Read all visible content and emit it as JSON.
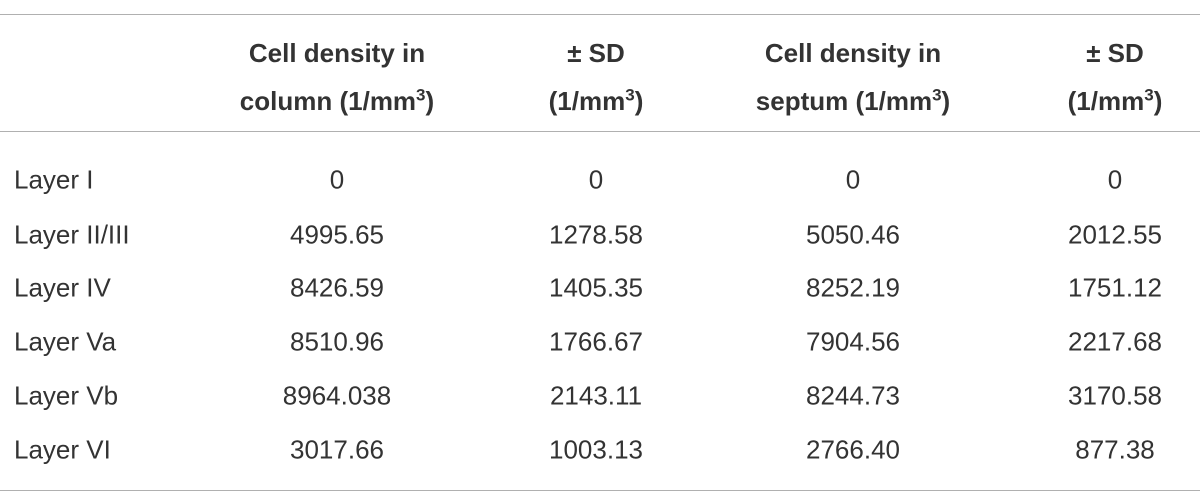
{
  "table": {
    "columns": [
      {
        "line1": "Cell density in",
        "line2": "column (1/mm",
        "sup": "3",
        "close": ")"
      },
      {
        "line1": "± SD",
        "line2": "(1/mm",
        "sup": "3",
        "close": ")"
      },
      {
        "line1": "Cell density in",
        "line2": "septum (1/mm",
        "sup": "3",
        "close": ")"
      },
      {
        "line1": "± SD",
        "line2": "(1/mm",
        "sup": "3",
        "close": ")"
      }
    ],
    "rows": [
      {
        "label": "Layer I",
        "values": [
          "0",
          "0",
          "0",
          "0"
        ]
      },
      {
        "label": "Layer II/III",
        "values": [
          "4995.65",
          "1278.58",
          "5050.46",
          "2012.55"
        ]
      },
      {
        "label": "Layer IV",
        "values": [
          "8426.59",
          "1405.35",
          "8252.19",
          "1751.12"
        ]
      },
      {
        "label": "Layer Va",
        "values": [
          "8510.96",
          "1766.67",
          "7904.56",
          "2217.68"
        ]
      },
      {
        "label": "Layer Vb",
        "values": [
          "8964.038",
          "2143.11",
          "8244.73",
          "3170.58"
        ]
      },
      {
        "label": "Layer VI",
        "values": [
          "3017.66",
          "1003.13",
          "2766.40",
          "877.38"
        ]
      }
    ]
  }
}
